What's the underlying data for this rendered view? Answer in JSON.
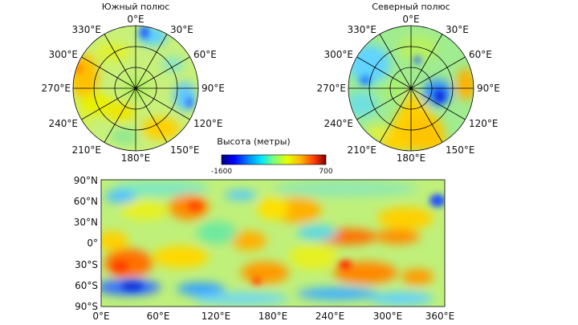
{
  "colorbar": {
    "title": "Высота (метры)",
    "min_label": "-1600",
    "max_label": "700",
    "stops": [
      "#00007f",
      "#0000ff",
      "#0080ff",
      "#00e5ff",
      "#7dff7a",
      "#e6ff00",
      "#ffb400",
      "#ff3a00",
      "#800000"
    ]
  },
  "south_pole": {
    "title": "Южный полюс",
    "lon_labels": [
      "0°E",
      "30°E",
      "60°E",
      "90°E",
      "120°E",
      "150°E",
      "180°E",
      "210°E",
      "240°E",
      "270°E",
      "300°E",
      "330°E"
    ]
  },
  "north_pole": {
    "title": "Северный полюс",
    "lon_labels": [
      "0°E",
      "30°E",
      "60°E",
      "90°E",
      "120°E",
      "150°E",
      "180°E",
      "210°E",
      "240°E",
      "270°E",
      "300°E",
      "330°E"
    ]
  },
  "global_map": {
    "y_ticks": [
      "90°N",
      "60°N",
      "30°N",
      "0°",
      "30°S",
      "60°S",
      "90°S"
    ],
    "x_ticks": [
      "0°E",
      "60°E",
      "120°E",
      "180°E",
      "240°E",
      "300°E",
      "360°E"
    ]
  }
}
